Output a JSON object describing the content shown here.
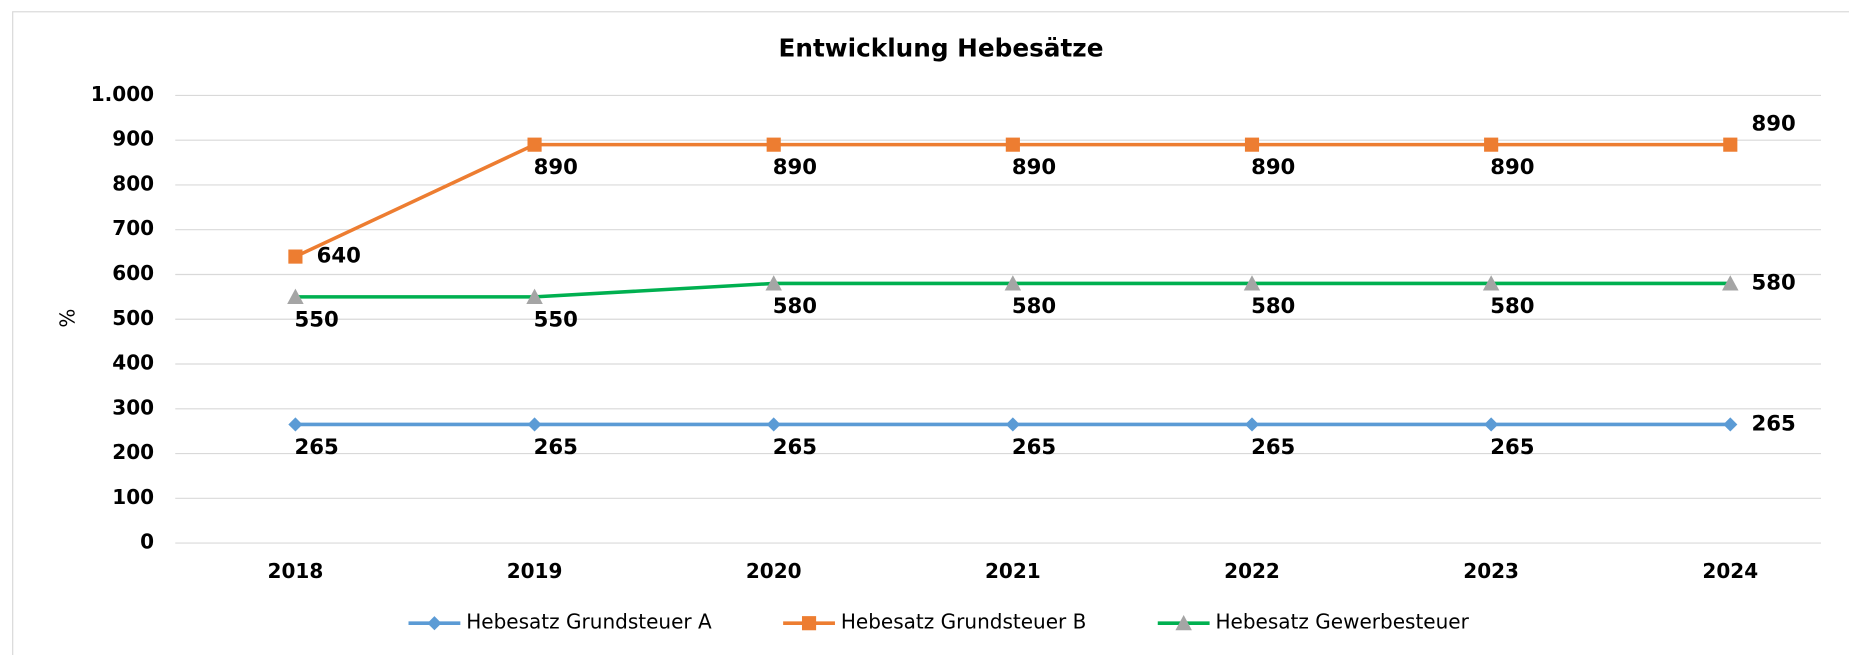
{
  "chart_data": {
    "type": "line",
    "title": "Entwicklung Hebesätze",
    "ylabel": "%",
    "categories": [
      "2018",
      "2019",
      "2020",
      "2021",
      "2022",
      "2023",
      "2024"
    ],
    "series": [
      {
        "name": "Hebesatz Grundsteuer A",
        "color": "#5b9bd5",
        "marker": "diamond",
        "marker_color": "#5b9bd5",
        "values": [
          265,
          265,
          265,
          265,
          265,
          265,
          265
        ]
      },
      {
        "name": "Hebesatz Grundsteuer B",
        "color": "#ed7d31",
        "marker": "square",
        "marker_color": "#ed7d31",
        "values": [
          640,
          890,
          890,
          890,
          890,
          890,
          890
        ]
      },
      {
        "name": "Hebesatz Gewerbesteuer",
        "color": "#00b050",
        "marker": "triangle",
        "marker_color": "#a5a5a5",
        "values": [
          550,
          550,
          580,
          580,
          580,
          580,
          580
        ]
      }
    ],
    "ylim": [
      0,
      1000
    ],
    "yticks": [
      0,
      100,
      200,
      300,
      400,
      500,
      600,
      700,
      800,
      900,
      {
        "value": 1000,
        "label": "1.000"
      }
    ],
    "grid": true,
    "legend": "bottom"
  }
}
